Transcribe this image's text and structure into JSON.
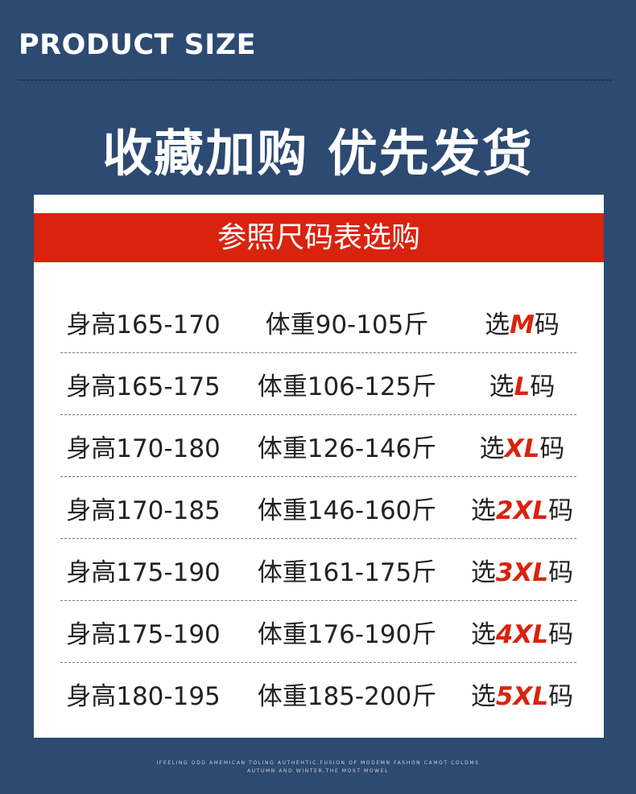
{
  "header": {
    "title": "PRODUCT SIZE",
    "slogan": "收藏加购 优先发货"
  },
  "table": {
    "banner": "参照尺码表选购",
    "rows": [
      {
        "height": "身高165-170",
        "weight": "体重90-105斤",
        "pre": "选",
        "size": "M",
        "post": "码"
      },
      {
        "height": "身高165-175",
        "weight": "体重106-125斤",
        "pre": "选",
        "size": "L",
        "post": "码"
      },
      {
        "height": "身高170-180",
        "weight": "体重126-146斤",
        "pre": "选",
        "size": "XL",
        "post": "码"
      },
      {
        "height": "身高170-185",
        "weight": "体重146-160斤",
        "pre": "选",
        "size": "2XL",
        "post": "码"
      },
      {
        "height": "身高175-190",
        "weight": "体重161-175斤",
        "pre": "选",
        "size": "3XL",
        "post": "码"
      },
      {
        "height": "身高175-190",
        "weight": "体重176-190斤",
        "pre": "选",
        "size": "4XL",
        "post": "码"
      },
      {
        "height": "身高180-195",
        "weight": "体重185-200斤",
        "pre": "选",
        "size": "5XL",
        "post": "码"
      }
    ]
  },
  "footer": {
    "line1": "IFEELING ODD AMEMICAN TOLING AUTHEHTIC.FUSION OF MODEMN FASHON CAMOT COLDMS",
    "line2": "AUTUMN AND WINTER.THE MOST MOWEL"
  },
  "colors": {
    "background": "#2c4a72",
    "accent": "#d9230f"
  }
}
